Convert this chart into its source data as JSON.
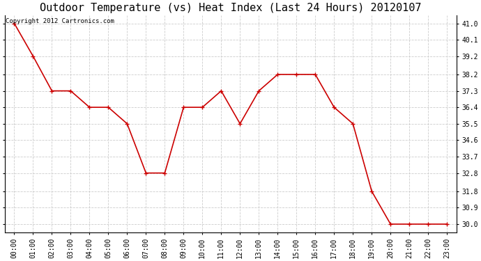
{
  "title": "Outdoor Temperature (vs) Heat Index (Last 24 Hours) 20120107",
  "copyright_text": "Copyright 2012 Cartronics.com",
  "x_labels": [
    "00:00",
    "01:00",
    "02:00",
    "03:00",
    "04:00",
    "05:00",
    "06:00",
    "07:00",
    "08:00",
    "09:00",
    "10:00",
    "11:00",
    "12:00",
    "13:00",
    "14:00",
    "15:00",
    "16:00",
    "17:00",
    "18:00",
    "19:00",
    "20:00",
    "21:00",
    "22:00",
    "23:00"
  ],
  "y_values": [
    41.0,
    39.2,
    37.3,
    37.3,
    36.4,
    36.4,
    35.5,
    32.8,
    32.8,
    36.4,
    36.4,
    37.3,
    35.5,
    37.3,
    38.2,
    38.2,
    38.2,
    36.4,
    35.5,
    31.8,
    30.0,
    30.0,
    30.0,
    30.0
  ],
  "line_color": "#cc0000",
  "marker_style": "+",
  "marker_size": 5,
  "marker_linewidth": 1.0,
  "grid_color": "#cccccc",
  "bg_color": "#ffffff",
  "plot_bg_color": "#ffffff",
  "title_fontsize": 11,
  "tick_fontsize": 7,
  "copyright_fontsize": 6.5,
  "ylim_min": 29.55,
  "ylim_max": 41.45,
  "yticks": [
    30.0,
    30.9,
    31.8,
    32.8,
    33.7,
    34.6,
    35.5,
    36.4,
    37.3,
    38.2,
    39.2,
    40.1,
    41.0
  ]
}
